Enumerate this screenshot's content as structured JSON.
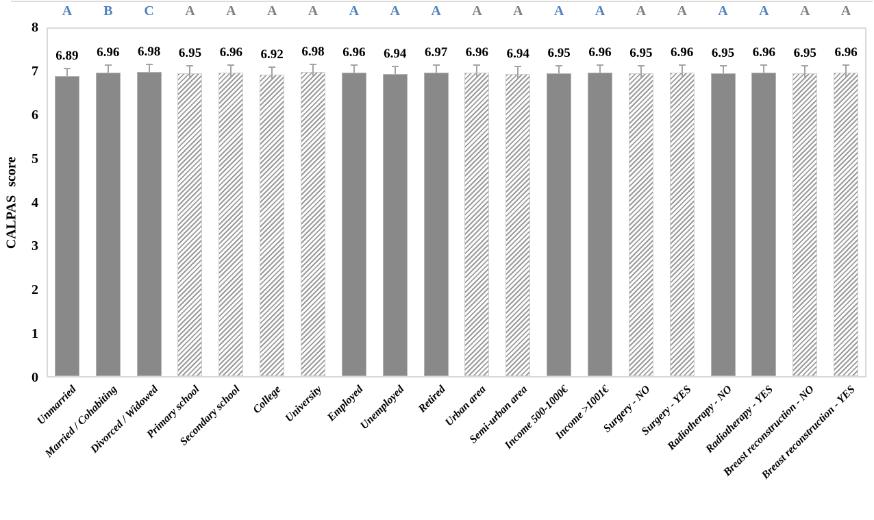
{
  "chart_data": {
    "type": "bar",
    "title": "",
    "xlabel": "",
    "ylabel": "CALPAS score",
    "ylim": [
      0,
      8
    ],
    "yticks": [
      0,
      1,
      2,
      3,
      4,
      5,
      6,
      7,
      8
    ],
    "grid": false,
    "legend": "none",
    "value_labels_shown": true,
    "value_label_decimals": 2,
    "categories": [
      "Unmarried",
      "Married / Cohabiting",
      "Divorced / Widowed",
      "Primary school",
      "Secondary school",
      "College",
      "University",
      "Employed",
      "Unemployed",
      "Retired",
      "Urban area",
      "Semi-urban area",
      "Income 500-1000€",
      "Income >1001€",
      "Surgery - NO",
      "Surgery - YES",
      "Radiotherapy - NO",
      "Radiotherapy - YES",
      "Breast reconstruction - NO",
      "Breast reconstruction - YES"
    ],
    "values": [
      6.89,
      6.96,
      6.98,
      6.95,
      6.96,
      6.92,
      6.98,
      6.96,
      6.94,
      6.97,
      6.96,
      6.94,
      6.95,
      6.96,
      6.95,
      6.96,
      6.95,
      6.96,
      6.95,
      6.96
    ],
    "significance_letters": [
      "A",
      "B",
      "C",
      "A",
      "A",
      "A",
      "A",
      "A",
      "A",
      "A",
      "A",
      "A",
      "A",
      "A",
      "A",
      "A",
      "A",
      "A",
      "A",
      "A"
    ],
    "letter_colors": [
      "blue",
      "blue",
      "blue",
      "gray",
      "gray",
      "gray",
      "gray",
      "blue",
      "blue",
      "blue",
      "gray",
      "gray",
      "blue",
      "blue",
      "gray",
      "gray",
      "blue",
      "blue",
      "gray",
      "gray"
    ],
    "letter_color_key": {
      "blue": "#4F81BD",
      "gray": "#7F7F7F"
    },
    "bar_styles": [
      "solid",
      "solid",
      "solid",
      "hatched",
      "hatched",
      "hatched",
      "hatched",
      "solid",
      "solid",
      "solid",
      "hatched",
      "hatched",
      "solid",
      "solid",
      "hatched",
      "hatched",
      "solid",
      "solid",
      "hatched",
      "hatched"
    ],
    "error_bars": {
      "shown": true,
      "approx_magnitude": 0.1
    },
    "colors": {
      "solid_bar_fill": "#898989",
      "hatch_stripe": "#9a9a9a",
      "hatch_background": "#ffffff",
      "error_bar": "#a3a3a3",
      "plot_border": "#d9d9d9",
      "value_label_text": "#000000",
      "axis_text": "#000000"
    }
  }
}
